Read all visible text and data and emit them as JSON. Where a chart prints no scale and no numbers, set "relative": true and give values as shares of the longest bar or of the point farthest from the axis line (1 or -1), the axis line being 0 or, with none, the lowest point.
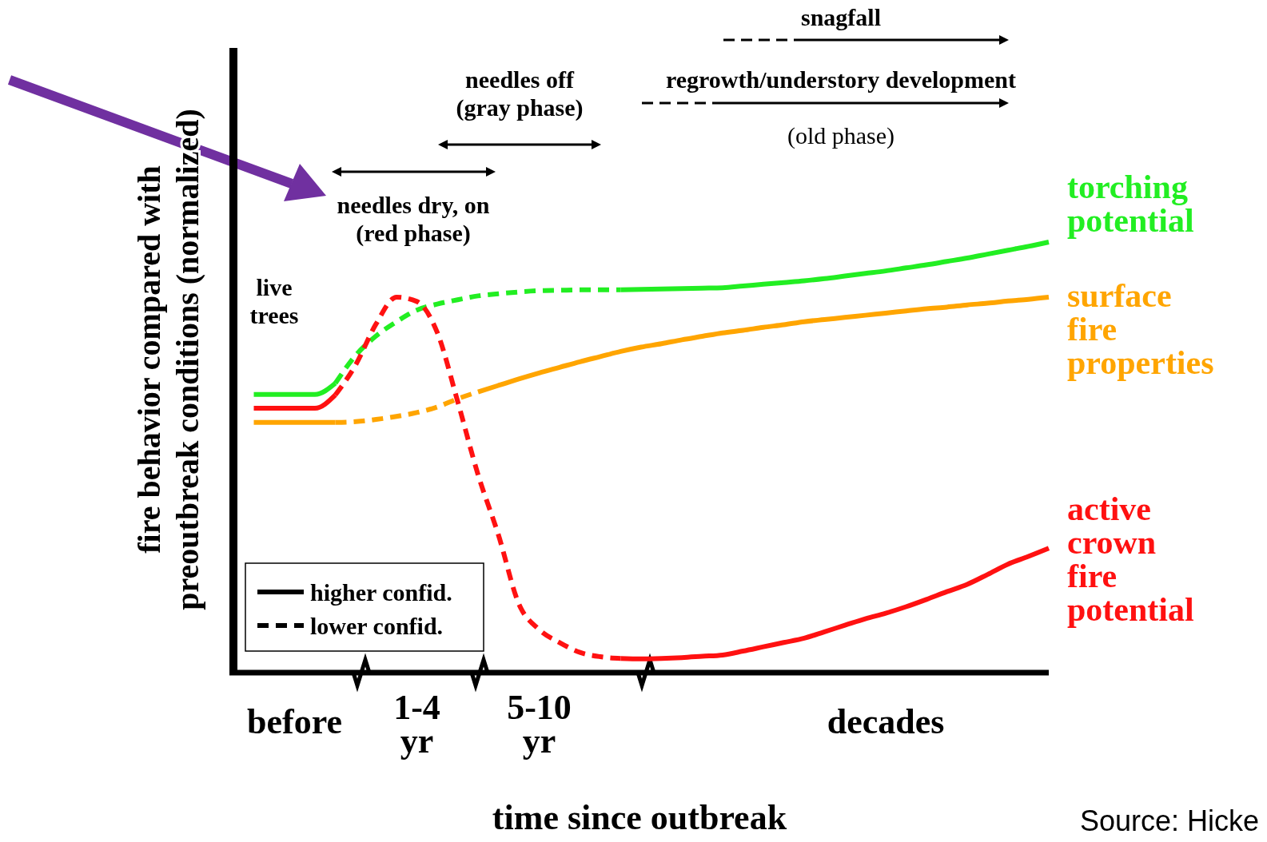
{
  "chart_data": {
    "type": "line",
    "relative": true,
    "xlabel": "time since outbreak",
    "ylabel": "fire behavior compared with\npreoutbreak conditions (normalized)",
    "categories": [
      null,
      null,
      null,
      "before",
      null,
      null,
      null,
      null,
      null,
      "1-4\nyr",
      null,
      null,
      null,
      null,
      null,
      "5-10\nyr",
      null,
      null,
      null,
      null,
      null,
      null,
      null,
      null,
      null,
      null,
      null,
      null,
      null,
      null,
      null,
      null,
      "decades",
      null,
      null,
      null,
      null,
      null,
      null,
      null,
      null
    ],
    "series": [
      {
        "color": "#22ee22",
        "line_style": "solid",
        "values": [
          null,
          0.646,
          0.646,
          0.646,
          0.646,
          0.672,
          null,
          null,
          null,
          null,
          null,
          null,
          null,
          null,
          null,
          null,
          null,
          null,
          null,
          null,
          null,
          null,
          null,
          null,
          null,
          null,
          null,
          null,
          null,
          null,
          null,
          null,
          null,
          null,
          null,
          null,
          null,
          null,
          null,
          null,
          null
        ]
      },
      {
        "color": "#22ee22",
        "line_style": "dashed",
        "values": [
          null,
          null,
          null,
          null,
          null,
          0.672,
          0.737,
          0.782,
          0.815,
          0.842,
          0.856,
          0.866,
          0.875,
          0.88,
          0.884,
          0.887,
          0.888,
          0.889,
          0.889,
          0.889,
          null,
          null,
          null,
          null,
          null,
          null,
          null,
          null,
          null,
          null,
          null,
          null,
          null,
          null,
          null,
          null,
          null,
          null,
          null,
          null,
          null
        ]
      },
      {
        "name": "torching\npotential",
        "color": "#22ee22",
        "line_style": "solid",
        "values": [
          null,
          null,
          null,
          null,
          null,
          null,
          null,
          null,
          null,
          null,
          null,
          null,
          null,
          null,
          null,
          null,
          null,
          null,
          null,
          0.889,
          0.89,
          0.891,
          0.892,
          0.893,
          0.894,
          0.898,
          0.902,
          0.906,
          0.91,
          0.915,
          0.921,
          0.927,
          0.933,
          0.94,
          0.947,
          0.955,
          0.963,
          0.972,
          0.981,
          0.99,
          1
        ]
      },
      {
        "color": "#ff1111",
        "line_style": "solid",
        "values": [
          null,
          0.614,
          0.614,
          0.614,
          0.614,
          0.645,
          null,
          null,
          null,
          null,
          null,
          null,
          null,
          null,
          null,
          null,
          null,
          null,
          null,
          null,
          null,
          null,
          null,
          null,
          null,
          null,
          null,
          null,
          null,
          null,
          null,
          null,
          null,
          null,
          null,
          null,
          null,
          null,
          null,
          null,
          null
        ]
      },
      {
        "color": "#ff1111",
        "line_style": "dashed",
        "values": [
          null,
          null,
          null,
          null,
          null,
          0.645,
          0.715,
          0.81,
          0.872,
          0.862,
          0.79,
          0.63,
          0.46,
          0.32,
          0.16,
          0.1,
          0.07,
          0.047,
          0.037,
          0.033,
          null,
          null,
          null,
          null,
          null,
          null,
          null,
          null,
          null,
          null,
          null,
          null,
          null,
          null,
          null,
          null,
          null,
          null,
          null,
          null,
          null
        ]
      },
      {
        "name": "active\ncrown\nfire\npotential",
        "color": "#ff1111",
        "line_style": "solid",
        "values": [
          null,
          null,
          null,
          null,
          null,
          null,
          null,
          null,
          null,
          null,
          null,
          null,
          null,
          null,
          null,
          null,
          null,
          null,
          null,
          0.033,
          0.032,
          0.033,
          0.035,
          0.038,
          0.041,
          0.05,
          0.06,
          0.07,
          0.08,
          0.095,
          0.11,
          0.125,
          0.138,
          0.153,
          0.17,
          0.188,
          0.205,
          0.228,
          0.252,
          0.27,
          0.289
        ]
      },
      {
        "color": "#ffa500",
        "line_style": "solid",
        "values": [
          null,
          0.581,
          0.581,
          0.581,
          0.581,
          0.581,
          null,
          null,
          null,
          null,
          null,
          null,
          null,
          null,
          null,
          null,
          null,
          null,
          null,
          null,
          null,
          null,
          null,
          null,
          null,
          null,
          null,
          null,
          null,
          null,
          null,
          null,
          null,
          null,
          null,
          null,
          null,
          null,
          null,
          null,
          null
        ]
      },
      {
        "color": "#ffa500",
        "line_style": "dashed",
        "values": [
          null,
          null,
          null,
          null,
          null,
          0.581,
          0.583,
          0.588,
          0.595,
          0.604,
          0.617,
          0.636,
          0.652,
          null,
          null,
          null,
          null,
          null,
          null,
          null,
          null,
          null,
          null,
          null,
          null,
          null,
          null,
          null,
          null,
          null,
          null,
          null,
          null,
          null,
          null,
          null,
          null,
          null,
          null,
          null,
          null
        ]
      },
      {
        "name": "surface\nfire\nproperties",
        "color": "#ffa500",
        "line_style": "solid",
        "values": [
          null,
          null,
          null,
          null,
          null,
          null,
          null,
          null,
          null,
          null,
          null,
          null,
          0.652,
          0.667,
          0.682,
          0.696,
          0.709,
          0.722,
          0.734,
          0.746,
          0.756,
          0.764,
          0.773,
          0.781,
          0.789,
          0.795,
          0.802,
          0.808,
          0.815,
          0.82,
          0.825,
          0.83,
          0.835,
          0.84,
          0.845,
          0.849,
          0.854,
          0.858,
          0.863,
          0.867,
          0.872
        ]
      }
    ],
    "annotations": [
      "snagfall",
      "regrowth/understory development",
      "(old phase)",
      "needles off\n(gray phase)",
      "needles dry, on\n(red phase)",
      "live\ntrees",
      "higher confid.",
      "lower confid.",
      "Source: Hicke"
    ]
  }
}
